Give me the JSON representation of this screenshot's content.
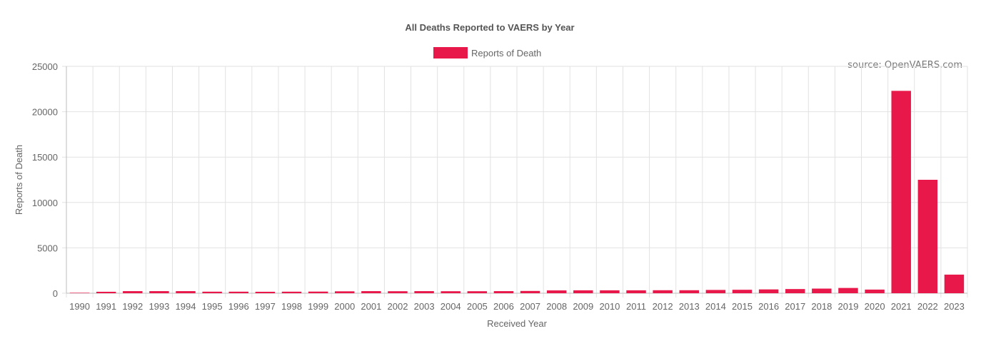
{
  "chart_data": {
    "type": "bar",
    "title": "All Deaths Reported to VAERS by Year",
    "source_note": "source: OpenVAERS.com",
    "xlabel": "Received Year",
    "ylabel": "Reports of Death",
    "ylim": [
      0,
      25000
    ],
    "yticks": [
      0,
      5000,
      10000,
      15000,
      20000,
      25000
    ],
    "legend_position": "top-center",
    "grid": true,
    "bar_color": "#e8184a",
    "categories": [
      "1990",
      "1991",
      "1992",
      "1993",
      "1994",
      "1995",
      "1996",
      "1997",
      "1998",
      "1999",
      "2000",
      "2001",
      "2002",
      "2003",
      "2004",
      "2005",
      "2006",
      "2007",
      "2008",
      "2009",
      "2010",
      "2011",
      "2012",
      "2013",
      "2014",
      "2015",
      "2016",
      "2017",
      "2018",
      "2019",
      "2020",
      "2021",
      "2022",
      "2023"
    ],
    "series": [
      {
        "name": "Reports of Death",
        "values": [
          50,
          160,
          230,
          230,
          230,
          170,
          170,
          160,
          170,
          180,
          210,
          230,
          220,
          230,
          220,
          220,
          230,
          250,
          310,
          320,
          320,
          320,
          330,
          330,
          360,
          380,
          420,
          460,
          510,
          580,
          400,
          22300,
          12500,
          2050
        ]
      }
    ]
  }
}
